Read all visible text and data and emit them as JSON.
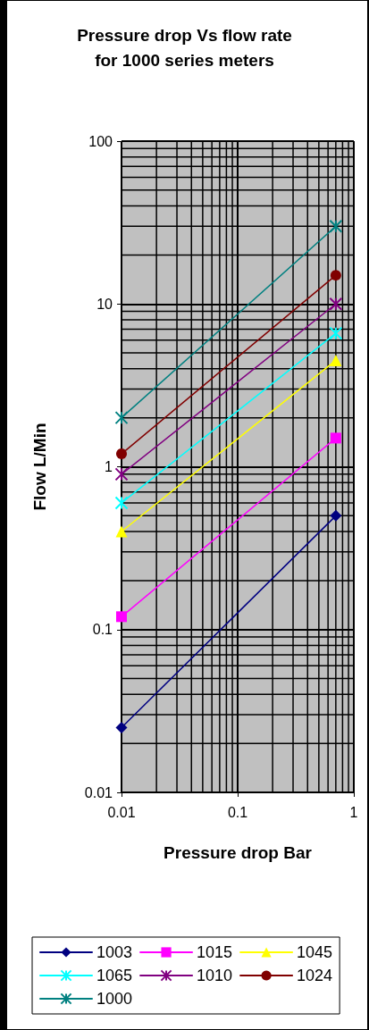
{
  "chart_data": {
    "type": "line",
    "title": "Pressure drop Vs flow rate\nfor 1000 series meters",
    "xlabel": "Pressure drop Bar",
    "ylabel": "Flow L/Min",
    "x": [
      0.01,
      0.7
    ],
    "series": [
      {
        "name": "1003",
        "color": "#000080",
        "marker": "diamond",
        "values": [
          0.025,
          0.5
        ]
      },
      {
        "name": "1015",
        "color": "#ff00ff",
        "marker": "square",
        "values": [
          0.12,
          1.5
        ]
      },
      {
        "name": "1045",
        "color": "#ffff00",
        "marker": "triangle",
        "values": [
          0.4,
          4.5
        ]
      },
      {
        "name": "1065",
        "color": "#00ffff",
        "marker": "cross",
        "values": [
          0.6,
          6.6
        ]
      },
      {
        "name": "1010",
        "color": "#800080",
        "marker": "cross",
        "values": [
          0.9,
          10
        ]
      },
      {
        "name": "1024",
        "color": "#800000",
        "marker": "circle",
        "values": [
          1.2,
          15
        ]
      },
      {
        "name": "1000",
        "color": "#008080",
        "marker": "cross",
        "values": [
          2,
          30
        ]
      }
    ],
    "log": "xy",
    "xlim": [
      0.01,
      1
    ],
    "xticks": [
      0.01,
      0.1,
      1
    ],
    "ylim": [
      0.01,
      100
    ],
    "yticks": [
      0.01,
      0.1,
      1,
      10,
      100
    ],
    "grid": true,
    "legend": "bottom"
  }
}
